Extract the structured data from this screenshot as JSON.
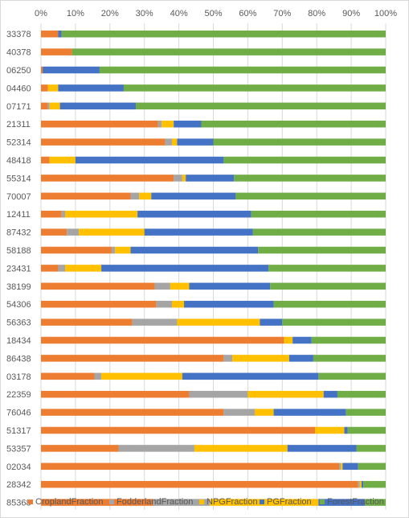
{
  "chart_data": {
    "type": "bar",
    "orientation": "horizontal",
    "stacked": "percent",
    "categories": [
      "33378",
      "40378",
      "06250",
      "04460",
      "07171",
      "21311",
      "52314",
      "48418",
      "55314",
      "70007",
      "12411",
      "87432",
      "58188",
      "23431",
      "38199",
      "54306",
      "56363",
      "18434",
      "86438",
      "03178",
      "22359",
      "76046",
      "51317",
      "53357",
      "02034",
      "28342",
      "85368"
    ],
    "series": [
      {
        "name": "CroplandFraction",
        "color": "#ed7d31",
        "values": [
          5,
          9,
          0.5,
          2,
          2,
          34,
          36,
          2.5,
          38.5,
          26,
          6,
          7.5,
          20.5,
          5,
          33,
          33.5,
          26.5,
          70.5,
          53,
          15.5,
          43,
          53,
          79.5,
          22.5,
          86.5,
          92,
          32.5
        ]
      },
      {
        "name": "FodderlandFraction",
        "color": "#a5a5a5",
        "values": [
          0,
          0,
          0,
          0,
          0.5,
          1,
          2,
          0,
          2.5,
          2.5,
          1,
          3.5,
          1,
          2,
          4.5,
          4.5,
          13,
          0,
          2.5,
          2,
          17,
          9,
          0,
          22,
          0.5,
          0.5,
          16.5
        ]
      },
      {
        "name": "NPGFraction",
        "color": "#ffc000",
        "values": [
          0,
          0,
          0,
          3,
          3,
          3.5,
          1.5,
          7.5,
          1,
          3.5,
          21,
          19,
          4.5,
          10.5,
          5.5,
          3.5,
          24,
          2.5,
          16.5,
          23.5,
          22,
          5.5,
          8.5,
          27,
          0.5,
          0.5,
          31.5
        ]
      },
      {
        "name": "PGFraction",
        "color": "#4472c4",
        "values": [
          1,
          0,
          16.5,
          19,
          22,
          8,
          10.5,
          43,
          14,
          24.5,
          33,
          31.5,
          37,
          48.5,
          23.5,
          26,
          6.5,
          5.5,
          7,
          39.5,
          4,
          21,
          1,
          20,
          4.5,
          0.5,
          13.5
        ]
      },
      {
        "name": "ForestFraction",
        "color": "#70ad47",
        "values": [
          94,
          91,
          83,
          76,
          72.5,
          53.5,
          50,
          47,
          44,
          43.5,
          39,
          38.5,
          37,
          34,
          33.5,
          32.5,
          30,
          21.5,
          21,
          19.5,
          14,
          11.5,
          11,
          8.5,
          8,
          6.5,
          6
        ]
      }
    ],
    "xlim": [
      0,
      100
    ],
    "x_ticks": [
      "0%",
      "10%",
      "20%",
      "30%",
      "40%",
      "50%",
      "60%",
      "70%",
      "80%",
      "90%",
      "100%"
    ],
    "x_axis_position": "top",
    "grid": true,
    "legend_position": "bottom",
    "title": "",
    "xlabel": "",
    "ylabel": ""
  }
}
